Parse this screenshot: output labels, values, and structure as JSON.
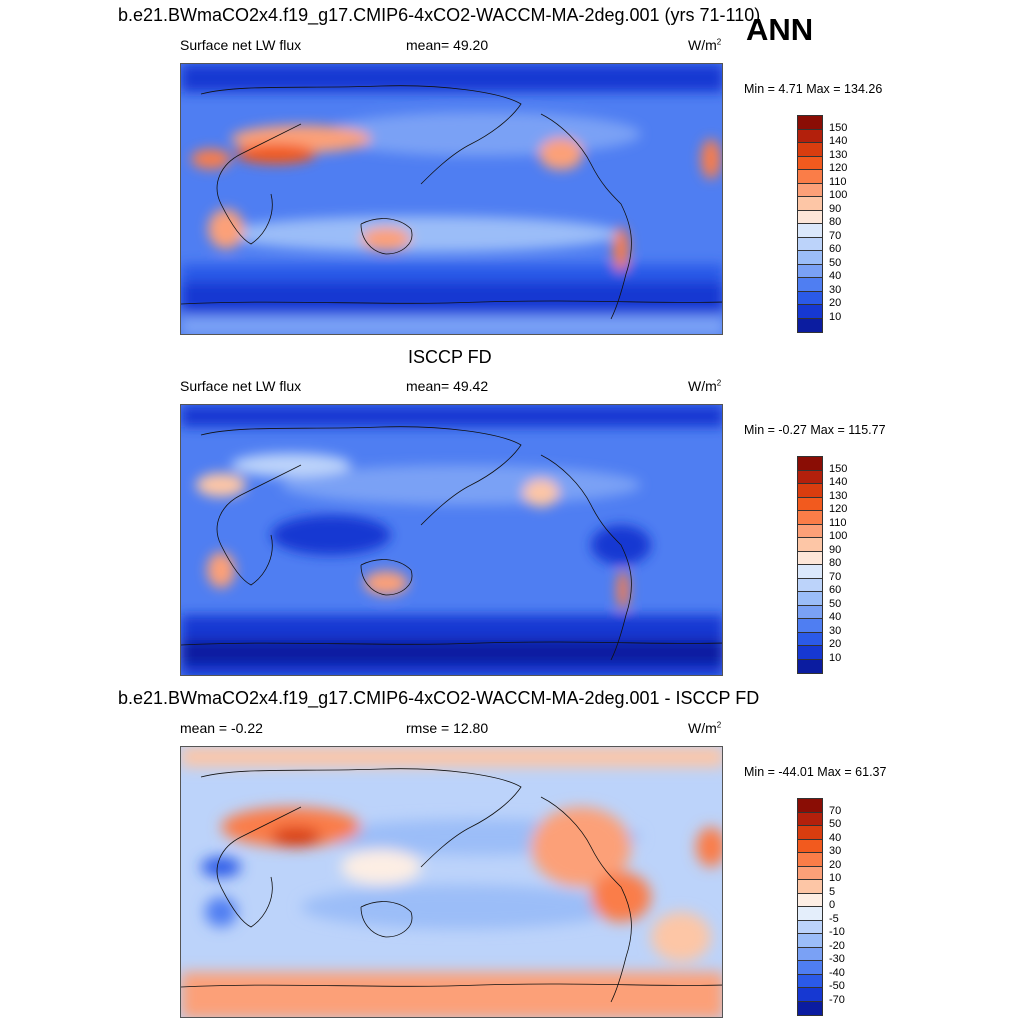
{
  "figure": {
    "title": "b.e21.BWmaCO2x4.f19_g17.CMIP6-4xCO2-WACCM-MA-2deg.001 (yrs 71-110)",
    "season": "ANN"
  },
  "panels": [
    {
      "id": "model",
      "title": "",
      "variable": "Surface net LW flux",
      "stat": "mean=  49.20",
      "unit": "W/m",
      "unit_sup": "2",
      "minmax": "Min =   4.71 Max = 134.26",
      "levels": [
        "150",
        "140",
        "130",
        "120",
        "110",
        "100",
        "90",
        "80",
        "70",
        "60",
        "50",
        "40",
        "30",
        "20",
        "10"
      ],
      "colors": [
        "#8a0d05",
        "#b3200c",
        "#d93d0f",
        "#f25a1e",
        "#fa7d48",
        "#fca078",
        "#fdc6a6",
        "#fde6d8",
        "#dbe8fb",
        "#bcd3fa",
        "#9bbdf8",
        "#7aa1f5",
        "#4f7ef2",
        "#2b5ae8",
        "#1638d2",
        "#0b1ca0"
      ]
    },
    {
      "id": "obs",
      "title": "ISCCP FD",
      "variable": "Surface net LW flux",
      "stat": "mean=  49.42",
      "unit": "W/m",
      "unit_sup": "2",
      "minmax": "Min =  -0.27 Max = 115.77",
      "levels": [
        "150",
        "140",
        "130",
        "120",
        "110",
        "100",
        "90",
        "80",
        "70",
        "60",
        "50",
        "40",
        "30",
        "20",
        "10"
      ],
      "colors": [
        "#8a0d05",
        "#b3200c",
        "#d93d0f",
        "#f25a1e",
        "#fa7d48",
        "#fca078",
        "#fdc6a6",
        "#fde6d8",
        "#dbe8fb",
        "#bcd3fa",
        "#9bbdf8",
        "#7aa1f5",
        "#4f7ef2",
        "#2b5ae8",
        "#1638d2",
        "#0b1ca0"
      ]
    },
    {
      "id": "diff",
      "title": "b.e21.BWmaCO2x4.f19_g17.CMIP6-4xCO2-WACCM-MA-2deg.001 - ISCCP FD",
      "variable": "mean =  -0.22",
      "stat": "rmse =  12.80",
      "unit": "W/m",
      "unit_sup": "2",
      "minmax": "Min = -44.01 Max =  61.37",
      "levels": [
        "70",
        "50",
        "40",
        "30",
        "20",
        "10",
        "5",
        "0",
        "-5",
        "-10",
        "-20",
        "-30",
        "-40",
        "-50",
        "-70"
      ],
      "colors": [
        "#8a0d05",
        "#b3200c",
        "#d93d0f",
        "#f25a1e",
        "#fa7d48",
        "#fca078",
        "#fdc6a6",
        "#fdeee4",
        "#e4eefb",
        "#bcd3fa",
        "#9bbdf8",
        "#7aa1f5",
        "#4f7ef2",
        "#2b5ae8",
        "#1638d2",
        "#0b1ca0"
      ]
    }
  ]
}
